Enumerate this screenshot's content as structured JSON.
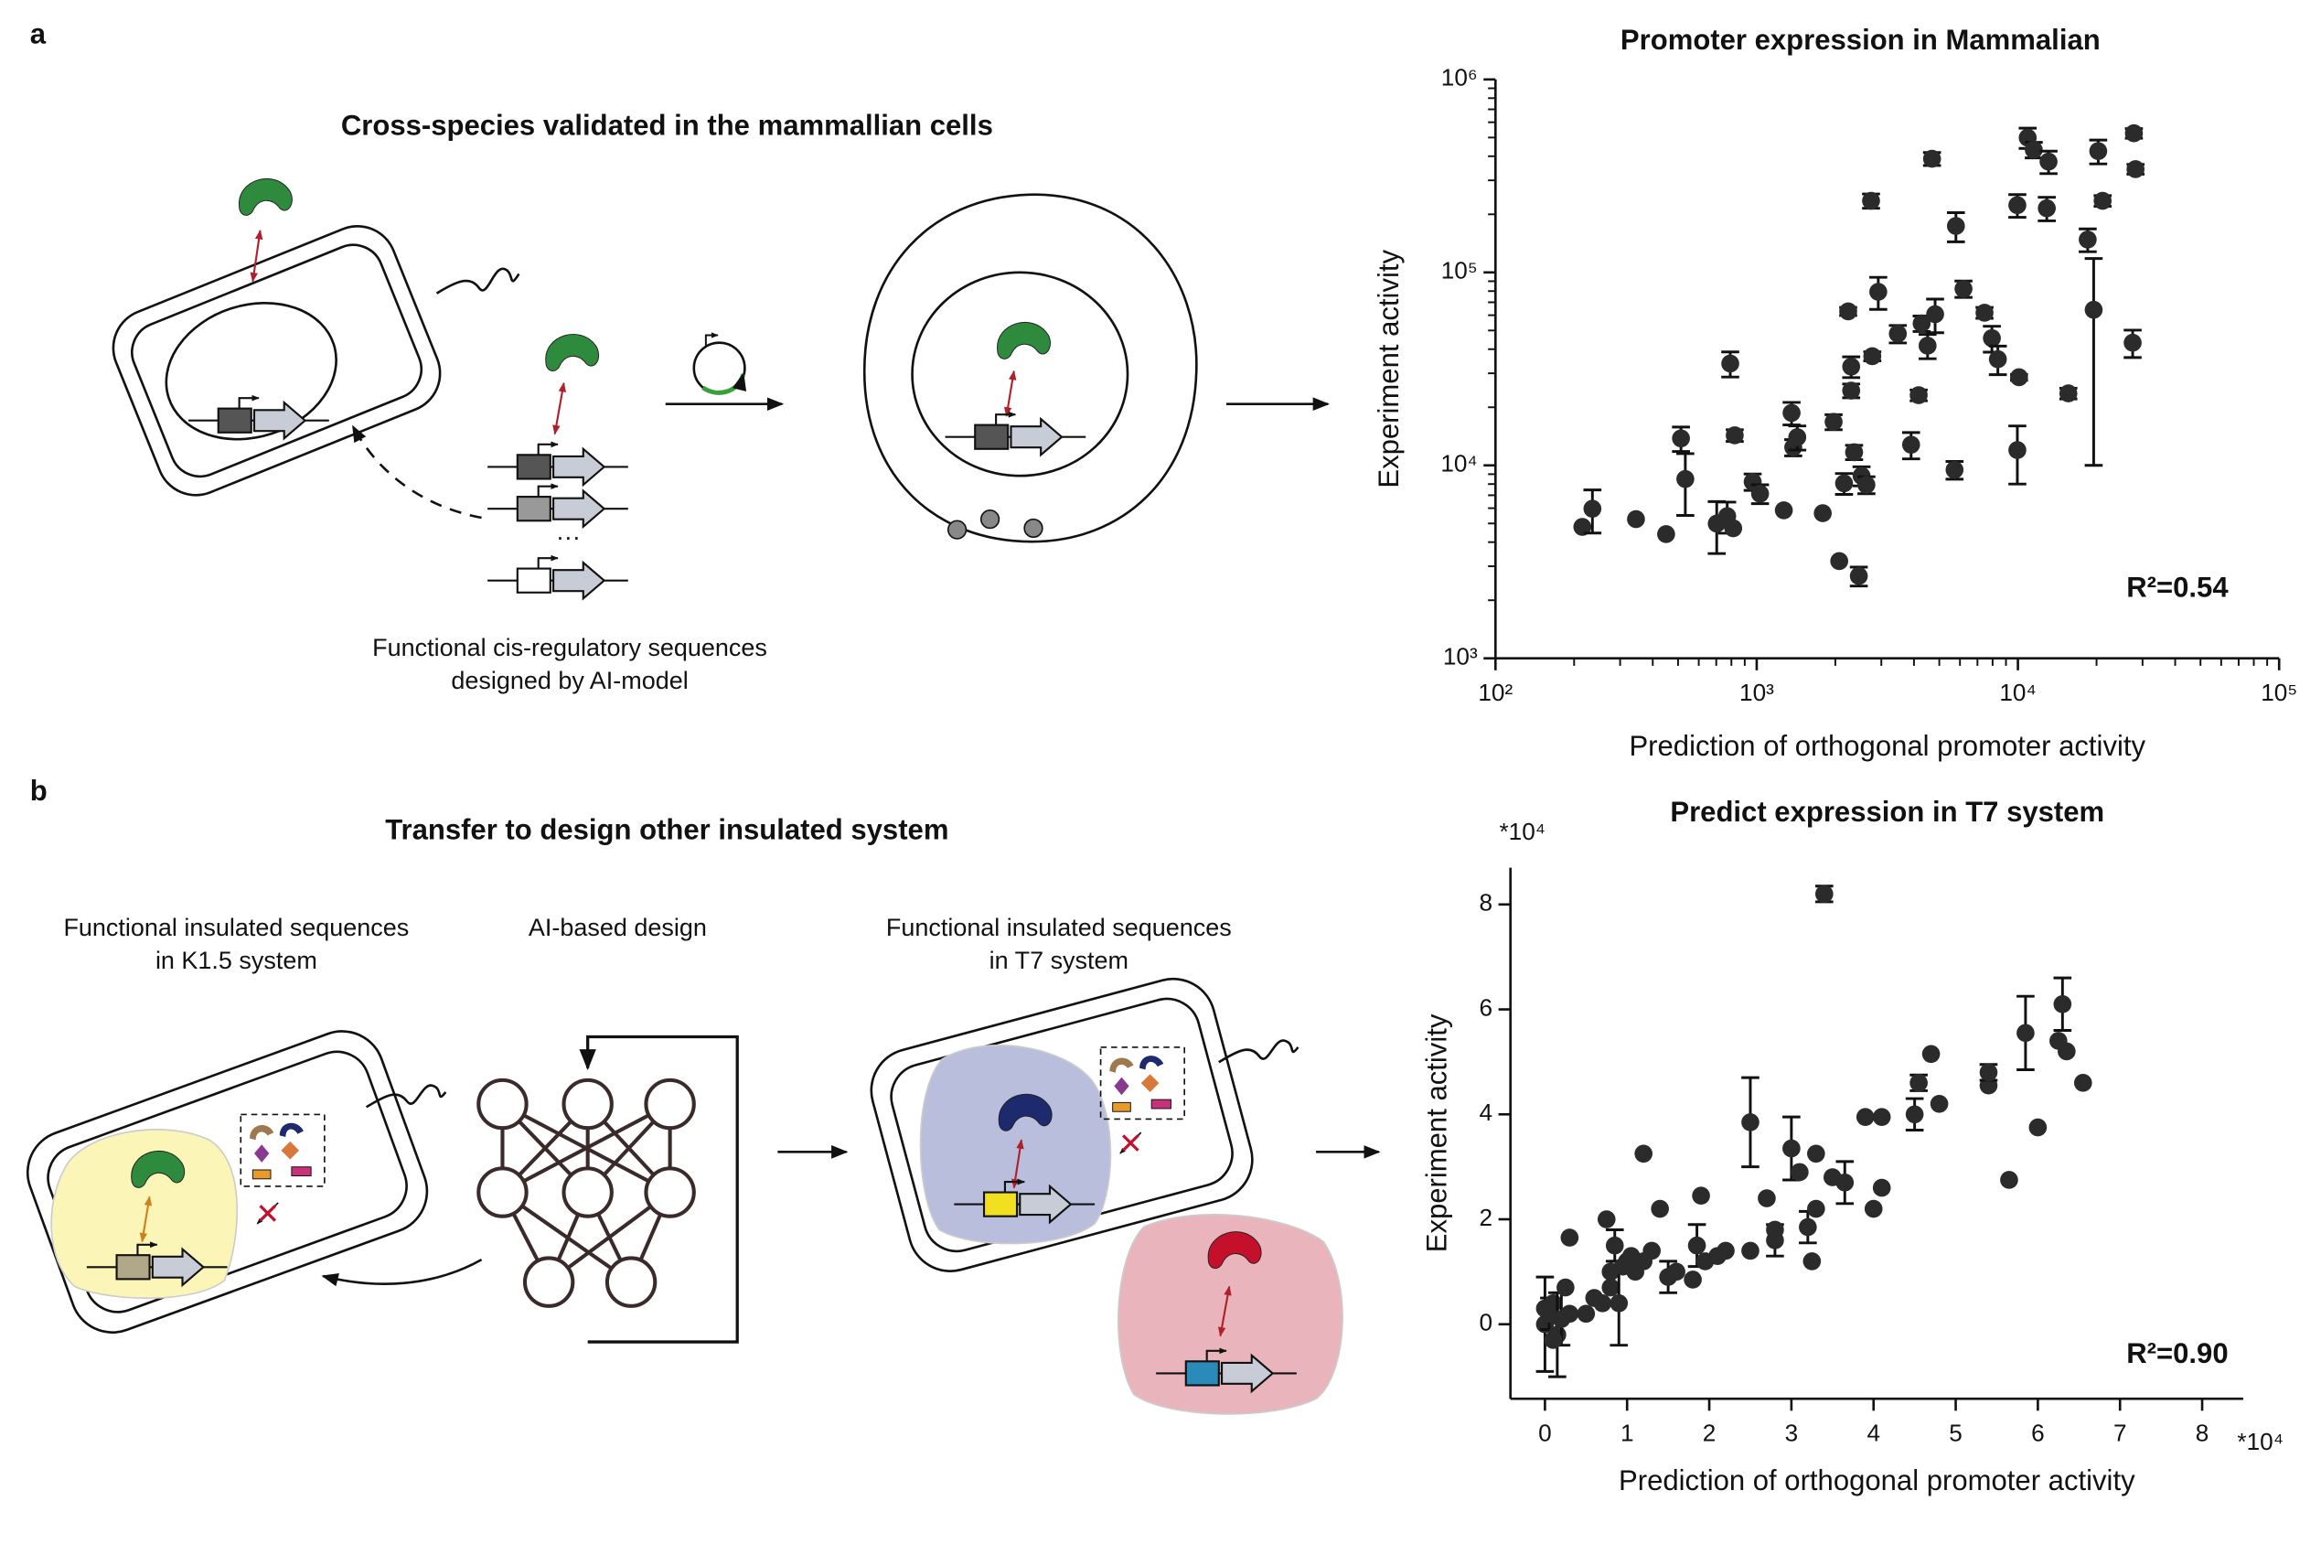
{
  "labels": {
    "a": "a",
    "b": "b"
  },
  "panel_a": {
    "title": "Cross-species validated in the mammallian cells",
    "caption": [
      "Functional cis-regulatory sequences",
      "designed by AI-model"
    ],
    "ellipsis": "···"
  },
  "panel_b": {
    "title": "Transfer to design other insulated system",
    "left_caption": [
      "Functional insulated sequences",
      "in K1.5 system"
    ],
    "middle_caption": "AI-based design",
    "right_caption": [
      "Functional insulated sequences",
      "in T7 system"
    ]
  },
  "chart_data": [
    {
      "type": "scatter",
      "title": "Promoter expression in Mammalian",
      "xlabel": "Prediction of orthogonal promoter activity",
      "ylabel": "Experiment activity",
      "annotation": "R²=0.54",
      "log_x": true,
      "log_y": true,
      "color": "#2b2b2b",
      "xlim": [
        100,
        100000
      ],
      "ylim": [
        1000,
        1000000
      ],
      "xticks": [
        {
          "value": 100,
          "label": "10²"
        },
        {
          "value": 1000,
          "label": "10³"
        },
        {
          "value": 10000,
          "label": "10⁴"
        },
        {
          "value": 100000,
          "label": "10⁵"
        }
      ],
      "yticks": [
        {
          "value": 1000,
          "label": "10³"
        },
        {
          "value": 10000,
          "label": "10⁴"
        },
        {
          "value": 100000,
          "label": "10⁵"
        },
        {
          "value": 1000000,
          "label": "10⁶"
        }
      ],
      "x": [
        215,
        235,
        345,
        450,
        513,
        533,
        703,
        771,
        813,
        792,
        824,
        965,
        1030,
        1270,
        1360,
        1380,
        1430,
        1790,
        1970,
        2070,
        2160,
        2240,
        2300,
        2300,
        2360,
        2460,
        2520,
        2630,
        2770,
        2740,
        2920,
        3470,
        3900,
        4170,
        4280,
        4510,
        4690,
        4820,
        5720,
        5790,
        6190,
        7450,
        7950,
        8380,
        10100,
        9950,
        9950,
        10900,
        11500,
        13100,
        12900,
        15600,
        18500,
        19500,
        20300,
        21100,
        27800,
        28200,
        27500
      ],
      "y": [
        4800,
        5960,
        5260,
        4400,
        13800,
        8500,
        4990,
        5450,
        4720,
        33700,
        14300,
        8220,
        7130,
        5850,
        18700,
        12400,
        14000,
        5650,
        16800,
        3190,
        8070,
        62800,
        24400,
        32500,
        11700,
        2670,
        8830,
        7930,
        36800,
        235000,
        79300,
        48100,
        12800,
        23100,
        54400,
        41700,
        388000,
        60700,
        9480,
        174000,
        82200,
        61800,
        45600,
        35500,
        28600,
        12000,
        223000,
        499000,
        432000,
        375000,
        215000,
        23600,
        148000,
        64000,
        425000,
        235000,
        526000,
        343000,
        43200
      ],
      "errors": [
        null,
        1500,
        null,
        null,
        2000,
        3000,
        1500,
        1000,
        null,
        5000,
        1000,
        800,
        800,
        null,
        2500,
        1200,
        2000,
        null,
        1500,
        null,
        1000,
        3000,
        2000,
        4000,
        1000,
        300,
        1000,
        800,
        2000,
        20000,
        15000,
        5000,
        2000,
        1500,
        5000,
        6000,
        30000,
        12000,
        1000,
        30000,
        8000,
        4000,
        7000,
        6000,
        1000,
        4000,
        30000,
        60000,
        40000,
        50000,
        30000,
        1500,
        20000,
        54000,
        60000,
        15000,
        30000,
        20000,
        7000
      ]
    },
    {
      "type": "scatter",
      "title": "Predict expression in T7 system",
      "xlabel": "Prediction of orthogonal promoter activity",
      "ylabel": "Experiment activity",
      "annotation": "R²=0.90",
      "x_multiplier": "*10⁴",
      "y_multiplier": "*10⁴",
      "color": "#2b2b2b",
      "xlim": [
        -0.42,
        8.5
      ],
      "ylim": [
        -1.42,
        8.7
      ],
      "xticks": [
        0,
        1,
        2,
        3,
        4,
        5,
        6,
        7,
        8
      ],
      "yticks": [
        0,
        2,
        4,
        6,
        8
      ],
      "x": [
        0,
        0.05,
        0.1,
        0.15,
        0.2,
        0.1,
        0.25,
        0,
        0.3,
        0.3,
        0.5,
        0.6,
        0.7,
        0.75,
        0.8,
        0.85,
        0.8,
        0.9,
        0.95,
        1.0,
        1.05,
        1.1,
        1.2,
        1.2,
        1.3,
        1.4,
        1.5,
        1.6,
        1.8,
        1.85,
        1.9,
        1.95,
        2.1,
        2.2,
        2.5,
        2.5,
        2.7,
        2.8,
        2.8,
        3.0,
        3.1,
        3.2,
        3.25,
        3.3,
        3.3,
        3.4,
        3.5,
        3.65,
        3.9,
        4.1,
        4.0,
        4.1,
        4.5,
        4.55,
        4.7,
        4.8,
        5.4,
        5.4,
        5.65,
        5.85,
        6.0,
        6.25,
        6.3,
        6.35,
        6.55
      ],
      "y": [
        0,
        0.2,
        0.4,
        -0.2,
        0.1,
        -0.3,
        0.7,
        0.3,
        0.2,
        1.65,
        0.2,
        0.5,
        0.4,
        2.0,
        1.0,
        1.5,
        0.7,
        0.4,
        1.1,
        1.2,
        1.3,
        1.0,
        3.25,
        1.2,
        1.4,
        2.2,
        0.9,
        1.0,
        0.85,
        1.5,
        2.45,
        1.2,
        1.3,
        1.4,
        3.85,
        1.4,
        2.4,
        1.6,
        1.8,
        3.35,
        2.9,
        1.85,
        1.2,
        3.25,
        2.2,
        8.2,
        2.8,
        2.7,
        3.95,
        3.95,
        2.2,
        2.6,
        4.0,
        4.6,
        5.15,
        4.2,
        4.55,
        4.8,
        2.75,
        5.55,
        3.75,
        5.4,
        6.1,
        5.2,
        4.6
      ],
      "errors": [
        0.9,
        0.3,
        null,
        0.8,
        0.5,
        null,
        null,
        null,
        null,
        null,
        null,
        null,
        null,
        null,
        null,
        0.3,
        null,
        0.8,
        null,
        null,
        null,
        null,
        null,
        null,
        null,
        null,
        0.3,
        null,
        null,
        0.4,
        null,
        null,
        null,
        null,
        0.85,
        null,
        null,
        0.3,
        null,
        0.6,
        null,
        0.3,
        null,
        null,
        null,
        0.15,
        null,
        0.4,
        null,
        null,
        null,
        null,
        0.3,
        0.15,
        null,
        null,
        null,
        0.15,
        null,
        0.7,
        null,
        null,
        0.5,
        null,
        null
      ]
    }
  ]
}
